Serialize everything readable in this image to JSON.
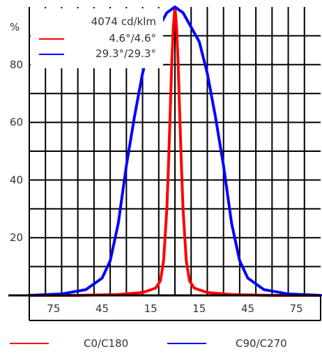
{
  "chart_data": {
    "type": "line",
    "title": "",
    "ylabel": "%",
    "xlabel": "",
    "ylim": [
      0,
      100
    ],
    "xlim": [
      -90,
      90
    ],
    "grid": true,
    "y_ticks": [
      20,
      40,
      60,
      80
    ],
    "x_ticks": [
      {
        "value": -75,
        "label": "75"
      },
      {
        "value": -45,
        "label": "45"
      },
      {
        "value": -15,
        "label": "15"
      },
      {
        "value": 15,
        "label": "15"
      },
      {
        "value": 45,
        "label": "45"
      },
      {
        "value": 75,
        "label": "75"
      }
    ],
    "inset_legend": {
      "header": "4074 cd/klm",
      "placement": "top-left",
      "entries": [
        {
          "label": "4.6°/4.6°",
          "color": "#ff0000"
        },
        {
          "label": "29.3°/29.3°",
          "color": "#0000ff"
        }
      ]
    },
    "footer_legend": [
      {
        "label": "C0/C180",
        "color": "#ff0000"
      },
      {
        "label": "C90/C270",
        "color": "#0000ff"
      }
    ],
    "series": [
      {
        "color": "#ff0000",
        "x": [
          -90,
          -60,
          -35,
          -20,
          -12,
          -9,
          -7,
          -5,
          -4,
          -3,
          -2,
          -1,
          0,
          1,
          2,
          3,
          4,
          5,
          7,
          9,
          12,
          20,
          35,
          60,
          90
        ],
        "y": [
          0,
          0,
          0.3,
          1,
          2.5,
          5,
          12,
          30,
          45,
          62,
          80,
          93,
          100,
          93,
          80,
          62,
          45,
          30,
          12,
          5,
          2.5,
          1,
          0.3,
          0,
          0
        ]
      },
      {
        "color": "#0000ff",
        "x": [
          -90,
          -70,
          -55,
          -45,
          -40,
          -35,
          -30,
          -25,
          -20,
          -15,
          -10,
          -5,
          0,
          5,
          10,
          15,
          20,
          25,
          30,
          35,
          40,
          45,
          55,
          70,
          90
        ],
        "y": [
          0,
          0.5,
          2,
          6,
          12,
          25,
          45,
          62,
          77,
          88,
          93,
          98,
          100,
          98,
          93,
          88,
          77,
          62,
          45,
          25,
          12,
          6,
          2,
          0.5,
          0
        ]
      }
    ]
  }
}
